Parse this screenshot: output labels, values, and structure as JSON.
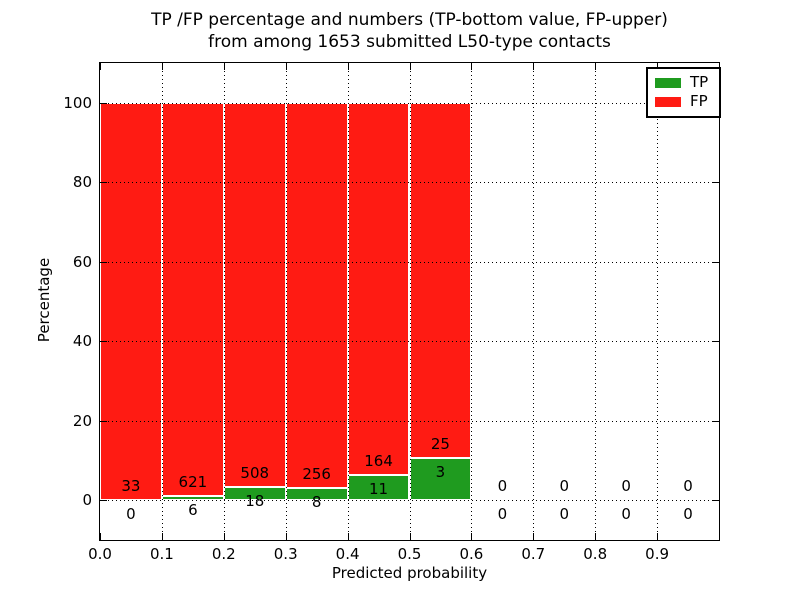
{
  "title": {
    "line1": "TP /FP percentage and numbers (TP-bottom value, FP-upper)",
    "line2": "from among 1653 submitted L50-type contacts"
  },
  "axes": {
    "xlabel": "Predicted probability",
    "ylabel": "Percentage"
  },
  "legend": {
    "position": "upper right",
    "entries": [
      {
        "label": "TP",
        "color": "#1f9b1f"
      },
      {
        "label": "FP",
        "color": "#ff1b13"
      }
    ]
  },
  "colors": {
    "tp_green": "#1f9b1f",
    "fp_red": "#ff1b13",
    "bar_edge": "#ffffff",
    "grid": "#000000",
    "frame": "#000000",
    "background": "#ffffff",
    "text": "#000000"
  },
  "chart_data": {
    "type": "bar",
    "stacked": true,
    "title": "TP /FP percentage and numbers (TP-bottom value, FP-upper) from among 1653 submitted L50-type contacts",
    "xlabel": "Predicted probability",
    "ylabel": "Percentage",
    "xlim": [
      0.0,
      1.0
    ],
    "ylim": [
      -10,
      110
    ],
    "grid": "dotted",
    "legend_position": "upper right",
    "total_contacts": 1653,
    "x_tick_values": [
      0.0,
      0.1,
      0.2,
      0.3,
      0.4,
      0.5,
      0.6,
      0.7,
      0.8,
      0.9
    ],
    "x_tick_labels": [
      "0.0",
      "0.1",
      "0.2",
      "0.3",
      "0.4",
      "0.5",
      "0.6",
      "0.7",
      "0.8",
      "0.9"
    ],
    "y_tick_values": [
      0,
      20,
      40,
      60,
      80,
      100
    ],
    "y_tick_labels": [
      "0",
      "20",
      "40",
      "60",
      "80",
      "100"
    ],
    "x_grid_values": [
      0.1,
      0.2,
      0.3,
      0.4,
      0.5,
      0.6,
      0.7,
      0.8,
      0.9
    ],
    "categories": [
      "0.0-0.1",
      "0.1-0.2",
      "0.2-0.3",
      "0.3-0.4",
      "0.4-0.5",
      "0.5-0.6",
      "0.6-0.7",
      "0.7-0.8",
      "0.8-0.9",
      "0.9-1.0"
    ],
    "series": [
      {
        "name": "TP",
        "color": "#1f9b1f",
        "counts": [
          0,
          6,
          18,
          8,
          11,
          3,
          0,
          0,
          0,
          0
        ]
      },
      {
        "name": "FP",
        "color": "#ff1b13",
        "counts": [
          33,
          621,
          508,
          256,
          164,
          25,
          0,
          0,
          0,
          0
        ]
      }
    ],
    "bins": [
      {
        "range": "0.0-0.1",
        "x_start": 0.0,
        "tp_count": 0,
        "fp_count": 33,
        "tp_pct": 0.0,
        "fp_pct": 100.0,
        "bar_drawn": true
      },
      {
        "range": "0.1-0.2",
        "x_start": 0.1,
        "tp_count": 6,
        "fp_count": 621,
        "tp_pct": 0.96,
        "fp_pct": 99.04,
        "bar_drawn": true
      },
      {
        "range": "0.2-0.3",
        "x_start": 0.2,
        "tp_count": 18,
        "fp_count": 508,
        "tp_pct": 3.42,
        "fp_pct": 96.58,
        "bar_drawn": true
      },
      {
        "range": "0.3-0.4",
        "x_start": 0.3,
        "tp_count": 8,
        "fp_count": 256,
        "tp_pct": 3.03,
        "fp_pct": 96.97,
        "bar_drawn": true
      },
      {
        "range": "0.4-0.5",
        "x_start": 0.4,
        "tp_count": 11,
        "fp_count": 164,
        "tp_pct": 6.29,
        "fp_pct": 93.71,
        "bar_drawn": true
      },
      {
        "range": "0.5-0.6",
        "x_start": 0.5,
        "tp_count": 3,
        "fp_count": 25,
        "tp_pct": 10.71,
        "fp_pct": 89.29,
        "bar_drawn": true
      },
      {
        "range": "0.6-0.7",
        "x_start": 0.6,
        "tp_count": 0,
        "fp_count": 0,
        "tp_pct": 0.0,
        "fp_pct": 0.0,
        "bar_drawn": false
      },
      {
        "range": "0.7-0.8",
        "x_start": 0.7,
        "tp_count": 0,
        "fp_count": 0,
        "tp_pct": 0.0,
        "fp_pct": 0.0,
        "bar_drawn": false
      },
      {
        "range": "0.8-0.9",
        "x_start": 0.8,
        "tp_count": 0,
        "fp_count": 0,
        "tp_pct": 0.0,
        "fp_pct": 0.0,
        "bar_drawn": false
      },
      {
        "range": "0.9-1.0",
        "x_start": 0.9,
        "tp_count": 0,
        "fp_count": 0,
        "tp_pct": 0.0,
        "fp_pct": 0.0,
        "bar_drawn": false
      }
    ]
  }
}
